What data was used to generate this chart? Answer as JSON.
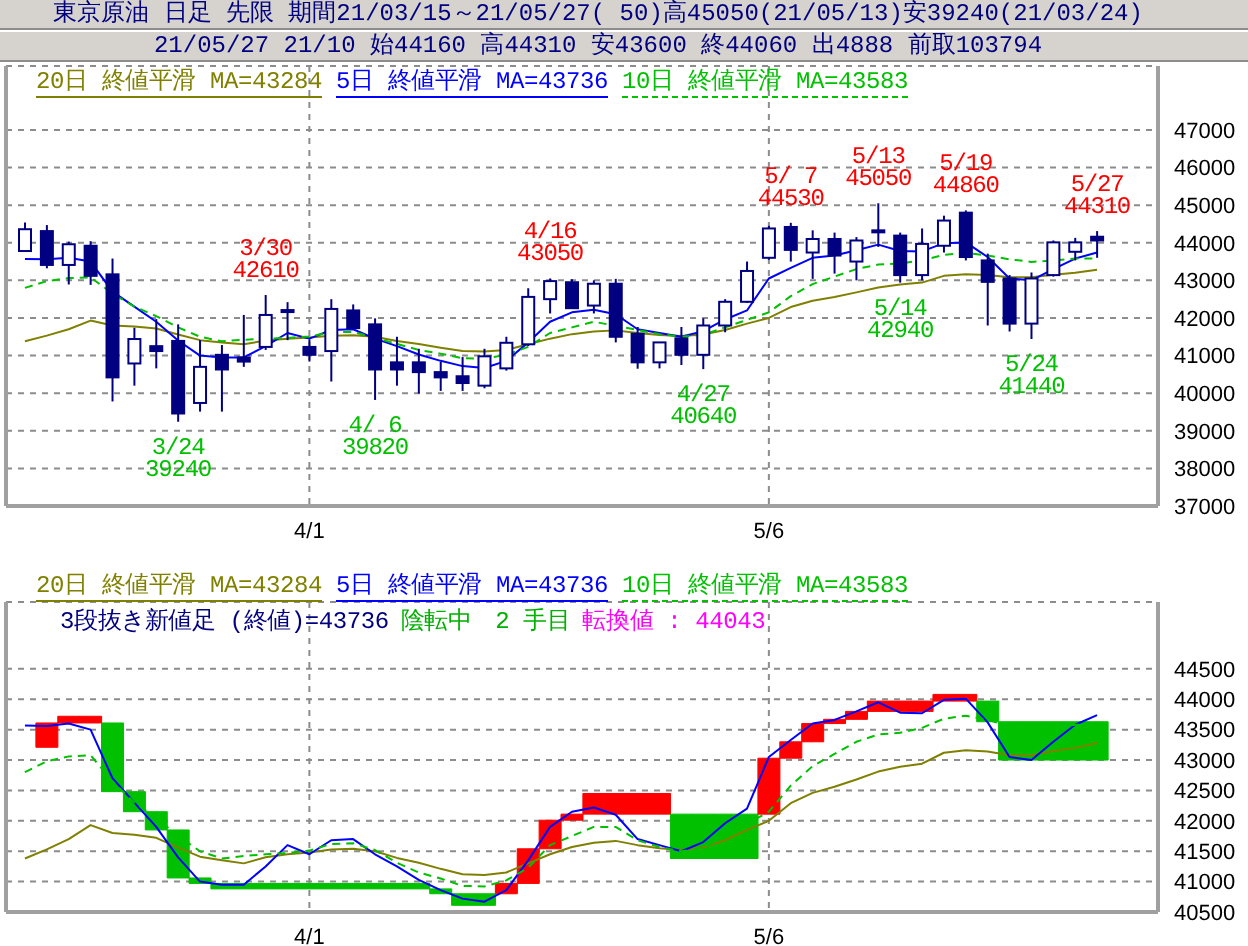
{
  "chart_data": [
    {
      "type": "candlestick",
      "title": "東京原油 日足 先限 期間21/03/15～21/05/27( 50)高45050(21/05/13)安39240(21/03/24)",
      "subtitle": "21/05/27 21/10 始44160 高44310 安43600 終44060 出4888 前取103794",
      "categories": [
        null,
        null,
        null,
        null,
        null,
        null,
        null,
        null,
        null,
        null,
        null,
        null,
        null,
        "4/1",
        null,
        null,
        null,
        null,
        null,
        null,
        null,
        null,
        null,
        null,
        null,
        null,
        null,
        null,
        null,
        null,
        null,
        null,
        null,
        null,
        "5/6",
        null,
        null,
        null,
        null,
        null,
        null,
        null,
        null,
        null,
        null,
        null,
        null,
        null,
        null,
        null
      ],
      "color": "#000080",
      "ohlc": [
        [
          43780,
          44540,
          43780,
          44360
        ],
        [
          44310,
          44470,
          43320,
          43410
        ],
        [
          43410,
          44030,
          42890,
          43960
        ],
        [
          43920,
          44040,
          42880,
          43120
        ],
        [
          43160,
          43580,
          39780,
          40420
        ],
        [
          40790,
          41740,
          40200,
          41440
        ],
        [
          41250,
          41970,
          40660,
          41120
        ],
        [
          41390,
          41830,
          39240,
          39460
        ],
        [
          39740,
          41410,
          39510,
          40700
        ],
        [
          41020,
          41280,
          39510,
          40630
        ],
        [
          40950,
          42080,
          40700,
          40840
        ],
        [
          41230,
          42610,
          41150,
          42080
        ],
        [
          42190,
          42420,
          41410,
          42210
        ],
        [
          41230,
          41430,
          40840,
          41020
        ],
        [
          41120,
          42500,
          40310,
          42240
        ],
        [
          42200,
          42360,
          41700,
          41730
        ],
        [
          41830,
          41990,
          39820,
          40630
        ],
        [
          40820,
          41500,
          40200,
          40630
        ],
        [
          40820,
          41180,
          39990,
          40560
        ],
        [
          40560,
          40840,
          40060,
          40420
        ],
        [
          40450,
          40960,
          40060,
          40270
        ],
        [
          40200,
          41180,
          40130,
          40980
        ],
        [
          40660,
          41500,
          40600,
          41340
        ],
        [
          41300,
          42790,
          41250,
          42560
        ],
        [
          42500,
          43050,
          42120,
          42980
        ],
        [
          42950,
          43030,
          42260,
          42260
        ],
        [
          42330,
          43000,
          42120,
          42910
        ],
        [
          42910,
          43040,
          41350,
          41500
        ],
        [
          41580,
          41760,
          40650,
          40820
        ],
        [
          40820,
          41350,
          40660,
          41350
        ],
        [
          41460,
          41760,
          40750,
          41020
        ],
        [
          41020,
          41990,
          40640,
          41800
        ],
        [
          41800,
          42500,
          41620,
          42430
        ],
        [
          42430,
          43500,
          42400,
          43250
        ],
        [
          43600,
          44450,
          43550,
          44380
        ],
        [
          44420,
          44530,
          43500,
          43810
        ],
        [
          43740,
          44330,
          43040,
          44100
        ],
        [
          44100,
          44270,
          43180,
          43660
        ],
        [
          43500,
          44150,
          43000,
          44060
        ],
        [
          44320,
          45050,
          43890,
          44330
        ],
        [
          44190,
          44270,
          42940,
          43140
        ],
        [
          43140,
          44380,
          43000,
          43970
        ],
        [
          43920,
          44720,
          43740,
          44590
        ],
        [
          44800,
          44860,
          43530,
          43620
        ],
        [
          43530,
          43710,
          41800,
          42960
        ],
        [
          43050,
          43140,
          41640,
          41850
        ],
        [
          41850,
          43210,
          41440,
          43050
        ],
        [
          43140,
          44060,
          43100,
          44010
        ],
        [
          43760,
          44130,
          43530,
          44010
        ],
        [
          44160,
          44310,
          43600,
          44060
        ]
      ],
      "series": [
        {
          "type": "line",
          "name": "20日 終値平滑 MA=43284",
          "color": "#808000",
          "values": [
            41380,
            41530,
            41700,
            41930,
            41800,
            41770,
            41720,
            41560,
            41410,
            41350,
            41300,
            41400,
            41450,
            41480,
            41530,
            41540,
            41500,
            41390,
            41310,
            41210,
            41120,
            41110,
            41150,
            41300,
            41450,
            41570,
            41640,
            41670,
            41600,
            41550,
            41520,
            41560,
            41680,
            41850,
            42000,
            42290,
            42460,
            42560,
            42680,
            42810,
            42890,
            42940,
            43120,
            43160,
            43140,
            43080,
            43080,
            43150,
            43200,
            43280
          ]
        },
        {
          "type": "line",
          "name": "5日 終値平滑 MA=43736",
          "color": "#0000ff",
          "values": [
            43570,
            43560,
            43600,
            43500,
            42700,
            42300,
            41900,
            41400,
            41000,
            40950,
            40950,
            41250,
            41600,
            41450,
            41680,
            41700,
            41450,
            41250,
            41030,
            40860,
            40720,
            40670,
            40860,
            41350,
            41900,
            42150,
            42220,
            42100,
            41700,
            41600,
            41500,
            41650,
            41960,
            42200,
            43050,
            43330,
            43600,
            43660,
            43800,
            43950,
            43780,
            43770,
            43990,
            44010,
            43620,
            43050,
            43000,
            43300,
            43580,
            43740
          ]
        },
        {
          "type": "line",
          "name": "10日 終値平滑 MA=43583",
          "color": "#00c000",
          "line_style": "dashed",
          "values": [
            42800,
            42980,
            43060,
            43080,
            42650,
            42300,
            42050,
            41750,
            41500,
            41380,
            41420,
            41450,
            41470,
            41510,
            41620,
            41630,
            null,
            41310,
            41150,
            41050,
            40930,
            40920,
            41020,
            41230,
            41600,
            41750,
            41900,
            null,
            41680,
            41570,
            41500,
            41550,
            41750,
            41950,
            42150,
            42580,
            42900,
            43100,
            43300,
            43420,
            43450,
            43530,
            43680,
            43730,
            43660,
            43560,
            43490,
            43530,
            43580,
            43580
          ]
        }
      ],
      "ylim": [
        37000,
        48700
      ],
      "yticks": [
        37000,
        38000,
        39000,
        40000,
        41000,
        42000,
        43000,
        44000,
        45000,
        46000,
        47000
      ],
      "grid": true,
      "legend": "top left",
      "annotations": [
        {
          "text": "3/24\n39240",
          "y": 39240
        },
        {
          "text": "3/30\n42610",
          "y": 42610
        },
        {
          "text": "4/ 6\n39820",
          "y": 39820
        },
        {
          "text": "4/16\n43050",
          "y": 43050
        },
        {
          "text": "4/27\n40640",
          "y": 40640
        },
        {
          "text": "5/ 7\n44530",
          "y": 44530
        },
        {
          "text": "5/13\n45050",
          "y": 45050
        },
        {
          "text": "5/14\n42940",
          "y": 42940
        },
        {
          "text": "5/19\n44860",
          "y": 44860
        },
        {
          "text": "5/24\n41440",
          "y": 41440
        },
        {
          "text": "5/27\n44310",
          "y": 44310
        }
      ]
    },
    {
      "type": "bar",
      "categories": [
        null,
        null,
        null,
        null,
        null,
        null,
        null,
        null,
        null,
        null,
        null,
        null,
        null,
        "4/1",
        null,
        null,
        null,
        null,
        null,
        null,
        null,
        null,
        null,
        null,
        null,
        null,
        null,
        null,
        null,
        null,
        null,
        null,
        null,
        null,
        "5/6",
        null,
        null,
        null,
        null,
        null,
        null,
        null,
        null,
        null,
        null,
        null,
        null,
        null,
        null,
        null
      ],
      "series": [
        {
          "type": "bar",
          "base": [
            null,
            43210,
            43610,
            43610,
            42480,
            42150,
            41850,
            41060,
            40970,
            40880,
            40880,
            40880,
            40880,
            40880,
            40880,
            40880,
            40880,
            40880,
            40880,
            40800,
            40610,
            40610,
            40800,
            40970,
            41540,
            42010,
            42110,
            42110,
            42110,
            42110,
            41380,
            41380,
            41380,
            41380,
            42110,
            43030,
            43300,
            43600,
            43670,
            43800,
            43800,
            43800,
            43970,
            43970,
            43630,
            43000,
            43000,
            43000,
            43000,
            43000
          ],
          "values": [
            null,
            400,
            110,
            110,
            1130,
            330,
            300,
            790,
            90,
            90,
            90,
            90,
            90,
            90,
            90,
            90,
            90,
            90,
            90,
            80,
            190,
            190,
            170,
            570,
            470,
            100,
            340,
            340,
            340,
            340,
            730,
            730,
            730,
            730,
            920,
            270,
            300,
            70,
            130,
            170,
            170,
            170,
            110,
            110,
            340,
            630,
            630,
            630,
            630,
            630
          ],
          "colors": [
            null,
            "#ff0000",
            "#ff0000",
            "#ff0000",
            "#00c000",
            "#00c000",
            "#00c000",
            "#00c000",
            "#00c000",
            "#00c000",
            "#00c000",
            "#00c000",
            "#00c000",
            "#00c000",
            "#00c000",
            "#00c000",
            "#00c000",
            "#00c000",
            "#00c000",
            "#00c000",
            "#00c000",
            "#00c000",
            "#ff0000",
            "#ff0000",
            "#ff0000",
            "#ff0000",
            "#ff0000",
            "#ff0000",
            "#ff0000",
            "#ff0000",
            "#00c000",
            "#00c000",
            "#00c000",
            "#00c000",
            "#ff0000",
            "#ff0000",
            "#ff0000",
            "#ff0000",
            "#ff0000",
            "#ff0000",
            "#ff0000",
            "#ff0000",
            "#ff0000",
            "#ff0000",
            "#00c000",
            "#00c000",
            "#00c000",
            "#00c000",
            "#00c000",
            "#00c000"
          ]
        },
        {
          "type": "line",
          "name": "20日 終値平滑 MA=43284",
          "color": "#808000",
          "values": [
            41380,
            41530,
            41700,
            41930,
            41800,
            41770,
            41720,
            41560,
            41410,
            41350,
            41300,
            41400,
            41450,
            41480,
            41530,
            41540,
            41500,
            41390,
            41310,
            41210,
            41120,
            41110,
            41150,
            41300,
            41450,
            41570,
            41640,
            41670,
            41600,
            41550,
            41520,
            41560,
            41680,
            41850,
            42000,
            42290,
            42460,
            42560,
            42680,
            42810,
            42890,
            42940,
            43120,
            43160,
            43140,
            43080,
            43080,
            43150,
            43200,
            43280
          ]
        },
        {
          "type": "line",
          "name": "5日 終値平滑 MA=43736",
          "color": "#0000ff",
          "values": [
            43570,
            43560,
            43600,
            43500,
            42700,
            42300,
            41900,
            41400,
            41000,
            40950,
            40950,
            41250,
            41600,
            41450,
            41680,
            41700,
            41450,
            41250,
            41030,
            40860,
            40720,
            40670,
            40860,
            41350,
            41900,
            42150,
            42220,
            42100,
            41700,
            41600,
            41500,
            41650,
            41960,
            42200,
            43050,
            43330,
            43600,
            43660,
            43800,
            43950,
            43780,
            43770,
            43990,
            44010,
            43620,
            43050,
            43000,
            43300,
            43580,
            43740
          ]
        },
        {
          "type": "line",
          "name": "10日 終値平滑 MA=43583",
          "color": "#00c000",
          "line_style": "dashed",
          "values": [
            42800,
            42980,
            43060,
            43080,
            42650,
            42300,
            42050,
            41750,
            41500,
            41380,
            41420,
            41450,
            41470,
            41510,
            41620,
            41630,
            41520,
            41310,
            41150,
            41050,
            40930,
            40920,
            41020,
            41230,
            41600,
            41750,
            41900,
            41900,
            41680,
            41570,
            41500,
            41550,
            41750,
            41950,
            42150,
            42580,
            42900,
            43100,
            43300,
            43420,
            43450,
            43530,
            43680,
            43730,
            43660,
            43560,
            43490,
            43530,
            43580,
            43580
          ]
        }
      ],
      "ylim": [
        40500,
        45600
      ],
      "yticks": [
        40500,
        41000,
        41500,
        42000,
        42500,
        43000,
        43500,
        44000,
        44500
      ],
      "grid": true,
      "legend": "top left",
      "annotations": [
        "3段抜き新値足 (終値)=43736",
        "陰転中　2 手目",
        "転換値 : 44043"
      ]
    }
  ]
}
